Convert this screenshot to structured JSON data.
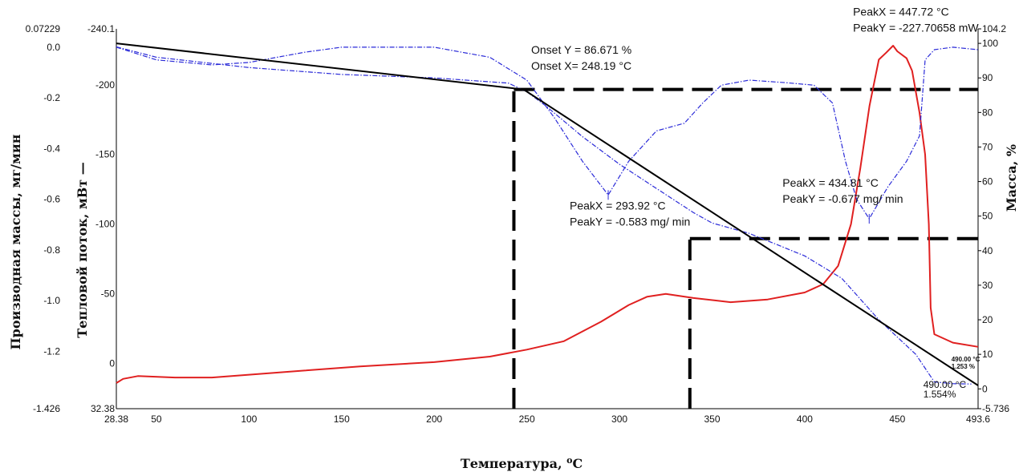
{
  "chart_data": {
    "type": "line",
    "title": "",
    "xlabel": "Температура, °C",
    "xlabel_main": "Температура, ",
    "xlabel_sup": "o",
    "xlabel_unit": "C",
    "ylabel_left_outer": "Производная массы, мг/мин",
    "ylabel_left_inner": "Тепловой поток, мВт —",
    "ylabel_right": "Масса, %",
    "xlim": [
      28.38,
      493.6
    ],
    "x_ticks": [
      "28.38",
      "50",
      "100",
      "150",
      "200",
      "250",
      "300",
      "350",
      "400",
      "450",
      "493.6"
    ],
    "axes": {
      "deriv": {
        "range": [
          0.07229,
          -1.426
        ],
        "ticks": [
          "0.07229",
          "0.0",
          "-0.2",
          "-0.4",
          "-0.6",
          "-0.8",
          "-1.0",
          "-1.2",
          "-1.426"
        ]
      },
      "heat": {
        "range": [
          -240.1,
          32.38
        ],
        "ticks": [
          "-240.1",
          "-200",
          "-150",
          "-100",
          "-50",
          "0",
          "32.38"
        ]
      },
      "mass": {
        "range": [
          104.2,
          -5.736
        ],
        "ticks": [
          "104.2",
          "100",
          "90",
          "80",
          "70",
          "60",
          "50",
          "40",
          "30",
          "20",
          "10",
          "0",
          "-5.736"
        ]
      }
    },
    "colors": {
      "heat_flow": "#e02020",
      "mass": "#2a2ad8",
      "derivative": "#2a2ad8",
      "tangent": "#000000",
      "guide": "#000000"
    },
    "series": [
      {
        "axis": "heat",
        "style": "solid",
        "points": [
          [
            28.38,
            14
          ],
          [
            32,
            11
          ],
          [
            40,
            9
          ],
          [
            60,
            10
          ],
          [
            80,
            10
          ],
          [
            100,
            8
          ],
          [
            130,
            5
          ],
          [
            160,
            2
          ],
          [
            200,
            -1
          ],
          [
            230,
            -5
          ],
          [
            250,
            -10
          ],
          [
            270,
            -16
          ],
          [
            290,
            -30
          ],
          [
            305,
            -42
          ],
          [
            315,
            -48
          ],
          [
            325,
            -50
          ],
          [
            340,
            -47
          ],
          [
            360,
            -44
          ],
          [
            380,
            -46
          ],
          [
            400,
            -51
          ],
          [
            410,
            -57
          ],
          [
            418,
            -70
          ],
          [
            425,
            -100
          ],
          [
            430,
            -140
          ],
          [
            435,
            -185
          ],
          [
            440,
            -218
          ],
          [
            444,
            -223
          ],
          [
            447.72,
            -228
          ],
          [
            450,
            -224
          ],
          [
            455,
            -219
          ],
          [
            458,
            -210
          ],
          [
            462,
            -180
          ],
          [
            465,
            -150
          ],
          [
            467,
            -100
          ],
          [
            468,
            -40
          ],
          [
            470,
            -21
          ],
          [
            480,
            -15
          ],
          [
            493.6,
            -12
          ]
        ]
      },
      {
        "axis": "mass",
        "style": "dash-dot",
        "points": [
          [
            28.38,
            99
          ],
          [
            50,
            96
          ],
          [
            100,
            93
          ],
          [
            150,
            91
          ],
          [
            200,
            90
          ],
          [
            240,
            88.5
          ],
          [
            250,
            86
          ],
          [
            260,
            82
          ],
          [
            280,
            73
          ],
          [
            300,
            65
          ],
          [
            320,
            58
          ],
          [
            340,
            51
          ],
          [
            350,
            48
          ],
          [
            370,
            45
          ],
          [
            400,
            38.5
          ],
          [
            420,
            32
          ],
          [
            440,
            20
          ],
          [
            460,
            10
          ],
          [
            470,
            2
          ],
          [
            480,
            1.5
          ],
          [
            490,
            1.4
          ]
        ]
      },
      {
        "axis": "deriv",
        "style": "dash-dot",
        "points": [
          [
            28.38,
            0.0
          ],
          [
            50,
            -0.05
          ],
          [
            80,
            -0.07
          ],
          [
            100,
            -0.06
          ],
          [
            130,
            -0.02
          ],
          [
            150,
            0.0
          ],
          [
            200,
            0.0
          ],
          [
            230,
            -0.04
          ],
          [
            250,
            -0.13
          ],
          [
            265,
            -0.28
          ],
          [
            280,
            -0.45
          ],
          [
            293.92,
            -0.583
          ],
          [
            305,
            -0.45
          ],
          [
            320,
            -0.33
          ],
          [
            335,
            -0.3
          ],
          [
            345,
            -0.22
          ],
          [
            355,
            -0.15
          ],
          [
            370,
            -0.13
          ],
          [
            390,
            -0.14
          ],
          [
            405,
            -0.15
          ],
          [
            415,
            -0.22
          ],
          [
            422,
            -0.45
          ],
          [
            428,
            -0.6
          ],
          [
            434.81,
            -0.677
          ],
          [
            445,
            -0.55
          ],
          [
            455,
            -0.45
          ],
          [
            462,
            -0.35
          ],
          [
            465,
            -0.05
          ],
          [
            470,
            -0.01
          ],
          [
            480,
            0.0
          ],
          [
            493.6,
            -0.01
          ]
        ]
      },
      {
        "axis": "mass",
        "style": "tangent",
        "points": [
          [
            28.38,
            100
          ],
          [
            248.19,
            86.671
          ],
          [
            493.6,
            1.0
          ]
        ]
      }
    ],
    "guides": [
      {
        "type": "vline",
        "x": 243,
        "axis": "mass",
        "from": -5.736,
        "to": 86.671
      },
      {
        "type": "hline",
        "axis": "mass",
        "y": 86.671,
        "from": 243,
        "to": 493.6
      },
      {
        "type": "vline",
        "x": 338,
        "axis": "mass",
        "from": -5.736,
        "to": 43.5
      },
      {
        "type": "hline",
        "axis": "mass",
        "y": 43.5,
        "from": 338,
        "to": 493.6
      }
    ],
    "annotations": [
      {
        "lines": [
          "Onset Y = 86.671 %",
          "Onset  X= 248.19 °C"
        ],
        "x": 248,
        "axis": "mass",
        "y": 97,
        "dx": 10
      },
      {
        "lines": [
          "PeakX = 447.72 °C",
          "PeakY = -227.70658 mW"
        ],
        "x": 447.72,
        "axis": "mass",
        "y": 108,
        "dx": -50
      },
      {
        "lines": [
          "PeakX = 293.92 °C",
          "PeakY = -0.583 mg/ min"
        ],
        "x": 293.92,
        "axis": "deriv",
        "y": -0.64,
        "dx": -48
      },
      {
        "lines": [
          "PeakX = 434.81  °C",
          "PeakY = -0.677 mg/ min"
        ],
        "x": 434.81,
        "axis": "deriv",
        "y": -0.55,
        "dx": -108
      }
    ],
    "endpoint_labels": [
      {
        "lines": [
          "490.00 °C",
          "1.554%"
        ],
        "x": 490,
        "axis": "mass",
        "y": 0.3,
        "dx": -60,
        "size": "normal"
      },
      {
        "lines": [
          "490.00 °C",
          "1.253 %"
        ],
        "x": 490,
        "axis": "mass",
        "y": 8,
        "dx": -25,
        "size": "small"
      }
    ]
  }
}
